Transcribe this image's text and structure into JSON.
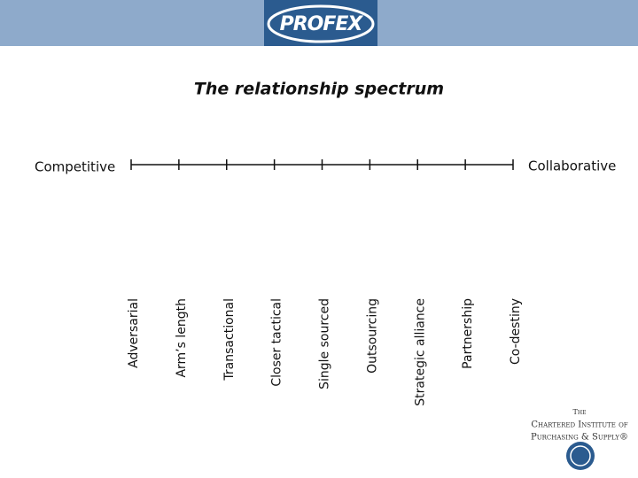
{
  "header": {
    "logo": "PROFEX"
  },
  "title": "The relationship spectrum",
  "spectrum": {
    "left": "Competitive",
    "right": "Collaborative",
    "points": [
      "Adversarial",
      "Arm’s length",
      "Transactional",
      "Closer tactical",
      "Single sourced",
      "Outsourcing",
      "Strategic alliance",
      "Partnership",
      "Co-destiny"
    ]
  },
  "footer": {
    "lines": [
      "The",
      "Chartered Institute of",
      "Purchasing & Supply®"
    ]
  }
}
